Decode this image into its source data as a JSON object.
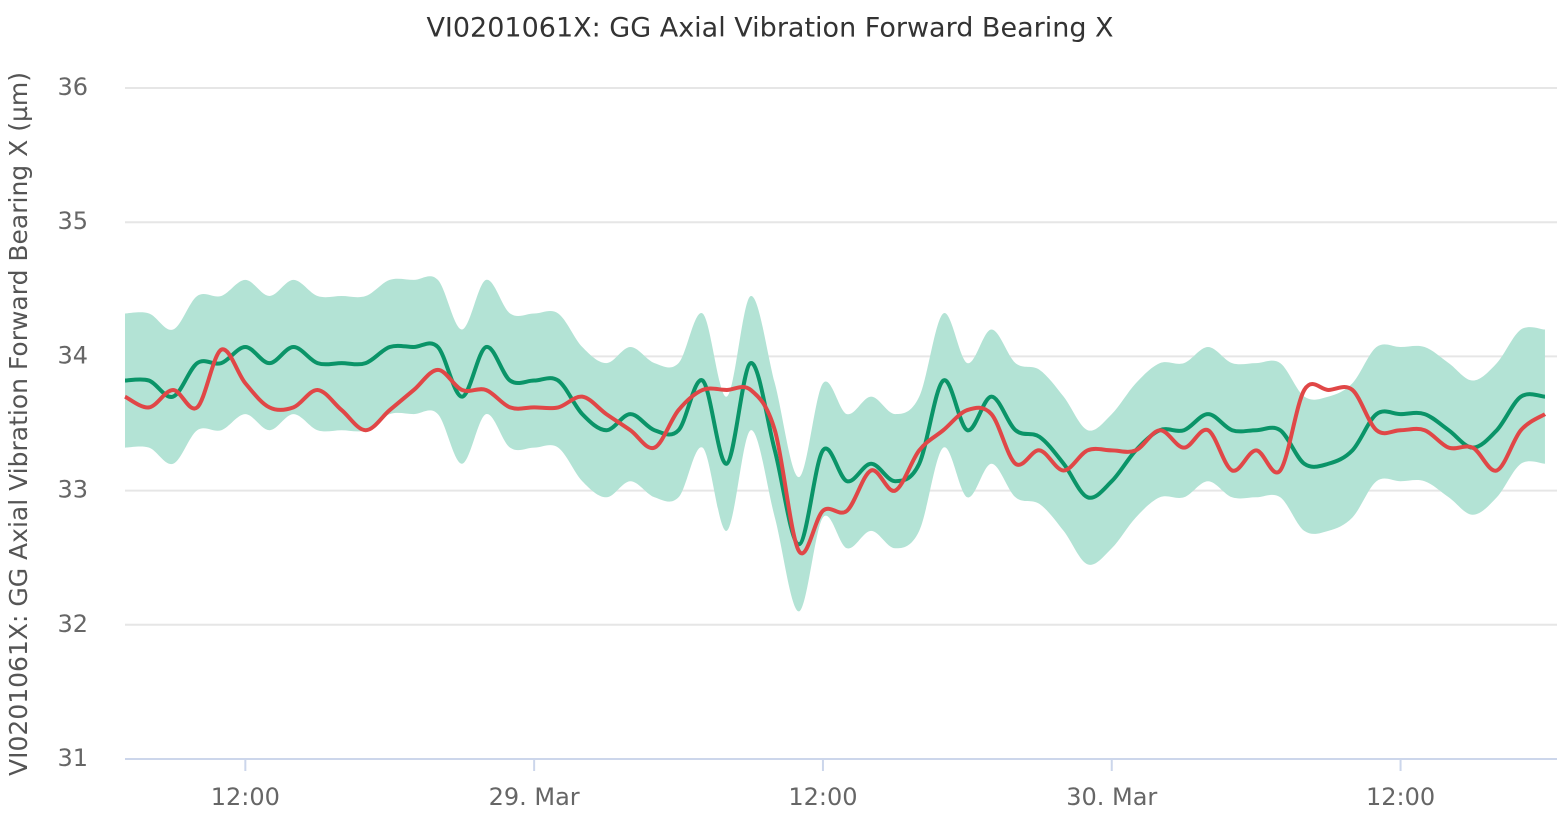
{
  "chart_data": {
    "type": "line",
    "title": "VI0201061X: GG Axial Vibration Forward Bearing X",
    "ylabel": "VI0201061X: GG Axial Vibration Forward Bearing X (µm)",
    "x": [
      "28. Mar 07:00",
      "28. Mar 08:00",
      "28. Mar 09:00",
      "28. Mar 10:00",
      "28. Mar 11:00",
      "28. Mar 12:00",
      "28. Mar 13:00",
      "28. Mar 14:00",
      "28. Mar 15:00",
      "28. Mar 16:00",
      "28. Mar 17:00",
      "28. Mar 18:00",
      "28. Mar 19:00",
      "28. Mar 20:00",
      "28. Mar 21:00",
      "28. Mar 22:00",
      "28. Mar 23:00",
      "29. Mar 00:00",
      "29. Mar 01:00",
      "29. Mar 02:00",
      "29. Mar 03:00",
      "29. Mar 04:00",
      "29. Mar 05:00",
      "29. Mar 06:00",
      "29. Mar 07:00",
      "29. Mar 08:00",
      "29. Mar 09:00",
      "29. Mar 10:00",
      "29. Mar 11:00",
      "29. Mar 12:00",
      "29. Mar 13:00",
      "29. Mar 14:00",
      "29. Mar 15:00",
      "29. Mar 16:00",
      "29. Mar 17:00",
      "29. Mar 18:00",
      "29. Mar 19:00",
      "29. Mar 20:00",
      "29. Mar 21:00",
      "29. Mar 22:00",
      "29. Mar 23:00",
      "30. Mar 00:00",
      "30. Mar 01:00",
      "30. Mar 02:00",
      "30. Mar 03:00",
      "30. Mar 04:00",
      "30. Mar 05:00",
      "30. Mar 06:00",
      "30. Mar 07:00",
      "30. Mar 08:00",
      "30. Mar 09:00",
      "30. Mar 10:00",
      "30. Mar 11:00",
      "30. Mar 12:00",
      "30. Mar 13:00",
      "30. Mar 14:00",
      "30. Mar 15:00",
      "30. Mar 16:00",
      "30. Mar 17:00",
      "30. Mar 18:00"
    ],
    "band": {
      "color": "#b3e3d5",
      "high": [
        34.32,
        34.32,
        34.2,
        34.45,
        34.45,
        34.57,
        34.45,
        34.57,
        34.45,
        34.45,
        34.45,
        34.57,
        34.57,
        34.57,
        34.2,
        34.57,
        34.32,
        34.32,
        34.32,
        34.07,
        33.95,
        34.07,
        33.95,
        33.95,
        34.32,
        33.7,
        34.45,
        33.8,
        33.1,
        33.8,
        33.57,
        33.7,
        33.57,
        33.7,
        34.32,
        33.95,
        34.2,
        33.95,
        33.9,
        33.7,
        33.45,
        33.57,
        33.8,
        33.95,
        33.95,
        34.07,
        33.95,
        33.95,
        33.95,
        33.7,
        33.7,
        33.8,
        34.07,
        34.07,
        34.07,
        33.95,
        33.82,
        33.95,
        34.2,
        34.2
      ],
      "low": [
        33.32,
        33.32,
        33.2,
        33.45,
        33.45,
        33.57,
        33.45,
        33.57,
        33.45,
        33.45,
        33.45,
        33.57,
        33.57,
        33.57,
        33.2,
        33.57,
        33.32,
        33.32,
        33.32,
        33.07,
        32.95,
        33.07,
        32.95,
        32.95,
        33.32,
        32.7,
        33.45,
        32.8,
        32.1,
        32.8,
        32.57,
        32.7,
        32.57,
        32.7,
        33.32,
        32.95,
        33.2,
        32.95,
        32.9,
        32.7,
        32.45,
        32.57,
        32.8,
        32.95,
        32.95,
        33.07,
        32.95,
        32.95,
        32.95,
        32.7,
        32.7,
        32.8,
        33.07,
        33.07,
        33.07,
        32.95,
        32.82,
        32.95,
        33.2,
        33.2
      ]
    },
    "series": [
      {
        "color": "#0a9468",
        "values": [
          33.82,
          33.82,
          33.7,
          33.95,
          33.95,
          34.07,
          33.95,
          34.07,
          33.95,
          33.95,
          33.95,
          34.07,
          34.07,
          34.07,
          33.7,
          34.07,
          33.82,
          33.82,
          33.82,
          33.57,
          33.45,
          33.57,
          33.45,
          33.45,
          33.82,
          33.2,
          33.95,
          33.3,
          32.6,
          33.3,
          33.07,
          33.2,
          33.07,
          33.2,
          33.82,
          33.45,
          33.7,
          33.45,
          33.4,
          33.2,
          32.95,
          33.07,
          33.3,
          33.45,
          33.45,
          33.57,
          33.45,
          33.45,
          33.45,
          33.2,
          33.2,
          33.3,
          33.57,
          33.57,
          33.57,
          33.45,
          33.32,
          33.45,
          33.7,
          33.7
        ]
      },
      {
        "color": "#e04747",
        "values": [
          33.7,
          33.62,
          33.75,
          33.62,
          34.05,
          33.8,
          33.62,
          33.62,
          33.75,
          33.6,
          33.45,
          33.6,
          33.75,
          33.9,
          33.75,
          33.75,
          33.62,
          33.62,
          33.62,
          33.7,
          33.57,
          33.45,
          33.32,
          33.6,
          33.75,
          33.75,
          33.75,
          33.45,
          32.55,
          32.85,
          32.85,
          33.15,
          33.0,
          33.3,
          33.45,
          33.6,
          33.57,
          33.2,
          33.3,
          33.15,
          33.3,
          33.3,
          33.3,
          33.45,
          33.32,
          33.45,
          33.15,
          33.3,
          33.15,
          33.75,
          33.75,
          33.75,
          33.45,
          33.45,
          33.45,
          33.32,
          33.32,
          33.15,
          33.45,
          33.57
        ]
      }
    ],
    "xlim": [
      "28. Mar 07:00",
      "30. Mar 18:30"
    ],
    "xticks": [
      {
        "value": "28. Mar 12:00",
        "label": "12:00"
      },
      {
        "value": "29. Mar 00:00",
        "label": "29. Mar"
      },
      {
        "value": "29. Mar 12:00",
        "label": "12:00"
      },
      {
        "value": "30. Mar 00:00",
        "label": "30. Mar"
      },
      {
        "value": "30. Mar 12:00",
        "label": "12:00"
      }
    ],
    "ylim": [
      31,
      36
    ],
    "yticks": [
      31,
      32,
      33,
      34,
      35,
      36
    ],
    "grid": true
  }
}
